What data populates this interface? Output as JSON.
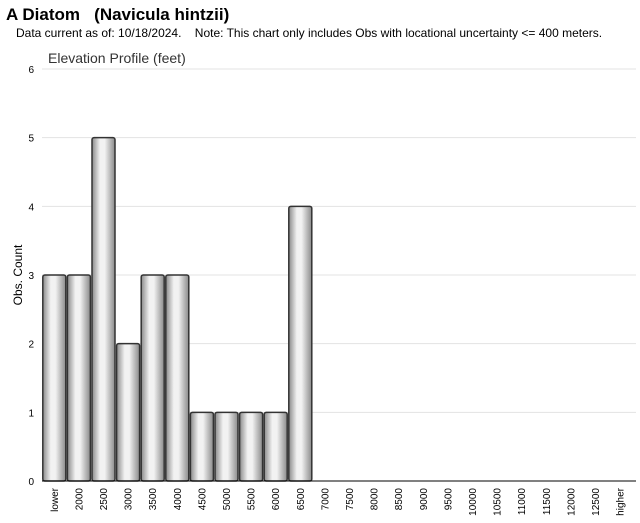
{
  "header": {
    "title": "A Diatom   (Navicula hintzii)",
    "note": "Data current as of: 10/18/2024.    Note: This chart only includes Obs with locational uncertainty <= 400 meters."
  },
  "chart_data": {
    "type": "bar",
    "title": "Elevation Profile (feet)",
    "xlabel": "",
    "ylabel": "Obs. Count",
    "ylim": [
      0,
      6
    ],
    "yticks": [
      0,
      1,
      2,
      3,
      4,
      5,
      6
    ],
    "grid": true,
    "categories": [
      "lower",
      "2000",
      "2500",
      "3000",
      "3500",
      "4000",
      "4500",
      "5000",
      "5500",
      "6000",
      "6500",
      "7000",
      "7500",
      "8000",
      "8500",
      "9000",
      "9500",
      "10000",
      "10500",
      "11000",
      "11500",
      "12000",
      "12500",
      "higher"
    ],
    "values": [
      3,
      3,
      5,
      2,
      3,
      3,
      1,
      1,
      1,
      1,
      4,
      0,
      0,
      0,
      0,
      0,
      0,
      0,
      0,
      0,
      0,
      0,
      0,
      0
    ],
    "colors": {
      "bar_edge": "#333333",
      "bar_dark": "#8a8a8a",
      "bar_light": "#f2f2f2",
      "grid": "#e3e3e3",
      "axis": "#000000"
    }
  }
}
